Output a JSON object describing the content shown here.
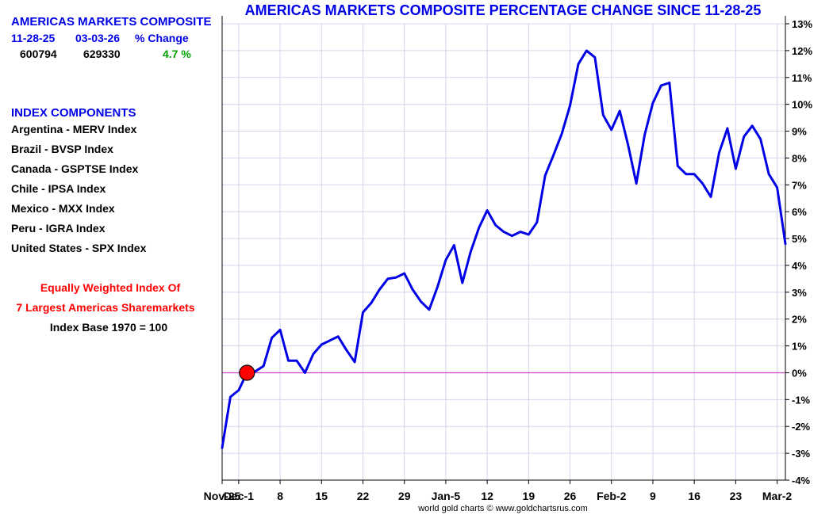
{
  "sidebar": {
    "composite_title": "AMERICAS MARKETS COMPOSITE",
    "table_headers": [
      "11-28-25",
      "03-03-26",
      "% Change"
    ],
    "table_values": [
      "600794",
      "629330",
      "4.7 %"
    ],
    "components_heading": "INDEX COMPONENTS",
    "components": [
      "Argentina - MERV Index",
      "Brazil - BVSP Index",
      "Canada - GSPTSE Index",
      "Chile - IPSA Index",
      "Mexico - MXX Index",
      "Peru - IGRA Index",
      "United States - SPX Index"
    ],
    "note_line1": "Equally Weighted Index Of",
    "note_line2": "7 Largest Americas Sharemarkets",
    "note_line3": "Index Base 1970 = 100"
  },
  "credit": "world gold charts © www.goldchartsrus.com",
  "colors": {
    "line": "#0000e6",
    "title": "#0000e6",
    "zero_line": "#cc44cc",
    "marker": "#ff0000",
    "grid": "#d4d4ec",
    "positive": "#00a000"
  },
  "chart_data": {
    "type": "line",
    "title": "AMERICAS MARKETS COMPOSITE PERCENTAGE CHANGE SINCE 11-28-25",
    "xlabel": "",
    "ylabel": "",
    "ylim": [
      -4,
      13
    ],
    "yticks": [
      "-4%",
      "-3%",
      "-2%",
      "-1%",
      "0%",
      "1%",
      "2%",
      "3%",
      "4%",
      "5%",
      "6%",
      "7%",
      "8%",
      "9%",
      "10%",
      "11%",
      "12%",
      "13%"
    ],
    "xticks": [
      {
        "label": "Nov-25",
        "x": 0
      },
      {
        "label": "Dec-1",
        "x": 2
      },
      {
        "label": "8",
        "x": 7
      },
      {
        "label": "15",
        "x": 12
      },
      {
        "label": "22",
        "x": 17
      },
      {
        "label": "29",
        "x": 22
      },
      {
        "label": "Jan-5",
        "x": 27
      },
      {
        "label": "12",
        "x": 32
      },
      {
        "label": "19",
        "x": 37
      },
      {
        "label": "26",
        "x": 42
      },
      {
        "label": "Feb-2",
        "x": 47
      },
      {
        "label": "9",
        "x": 52
      },
      {
        "label": "16",
        "x": 57
      },
      {
        "label": "23",
        "x": 62
      },
      {
        "label": "Mar-2",
        "x": 67
      }
    ],
    "x_max": 68,
    "reference_line": 0,
    "marker_x": 3,
    "marker_y": 0,
    "grid": true,
    "series": [
      {
        "values": [
          [
            0,
            -2.8
          ],
          [
            1,
            -0.9
          ],
          [
            2,
            -0.65
          ],
          [
            3,
            0.0
          ],
          [
            4,
            0.05
          ],
          [
            5,
            0.25
          ],
          [
            6,
            1.3
          ],
          [
            7,
            1.6
          ],
          [
            8,
            0.45
          ],
          [
            9,
            0.45
          ],
          [
            10,
            0.0
          ],
          [
            11,
            0.7
          ],
          [
            12,
            1.05
          ],
          [
            14,
            1.35
          ],
          [
            15,
            0.85
          ],
          [
            16,
            0.4
          ],
          [
            17,
            2.25
          ],
          [
            18,
            2.6
          ],
          [
            19,
            3.1
          ],
          [
            20,
            3.5
          ],
          [
            21,
            3.55
          ],
          [
            22,
            3.7
          ],
          [
            23,
            3.1
          ],
          [
            24,
            2.65
          ],
          [
            25,
            2.35
          ],
          [
            26,
            3.2
          ],
          [
            27,
            4.2
          ],
          [
            28,
            4.75
          ],
          [
            29,
            3.35
          ],
          [
            30,
            4.5
          ],
          [
            31,
            5.4
          ],
          [
            32,
            6.05
          ],
          [
            33,
            5.5
          ],
          [
            34,
            5.25
          ],
          [
            35,
            5.1
          ],
          [
            36,
            5.25
          ],
          [
            37,
            5.15
          ],
          [
            38,
            5.6
          ],
          [
            39,
            7.35
          ],
          [
            40,
            8.1
          ],
          [
            41,
            8.9
          ],
          [
            42,
            9.95
          ],
          [
            43,
            11.5
          ],
          [
            44,
            12.0
          ],
          [
            45,
            11.75
          ],
          [
            46,
            9.6
          ],
          [
            47,
            9.05
          ],
          [
            48,
            9.75
          ],
          [
            49,
            8.5
          ],
          [
            50,
            7.05
          ],
          [
            51,
            8.85
          ],
          [
            52,
            10.05
          ],
          [
            53,
            10.7
          ],
          [
            54,
            10.8
          ],
          [
            55,
            7.7
          ],
          [
            56,
            7.4
          ],
          [
            57,
            7.4
          ],
          [
            58,
            7.05
          ],
          [
            59,
            6.55
          ],
          [
            60,
            8.2
          ],
          [
            61,
            9.1
          ],
          [
            62,
            7.6
          ],
          [
            63,
            8.8
          ],
          [
            64,
            9.2
          ],
          [
            65,
            8.7
          ],
          [
            66,
            7.4
          ],
          [
            67,
            6.9
          ],
          [
            68,
            4.8
          ]
        ]
      }
    ]
  }
}
